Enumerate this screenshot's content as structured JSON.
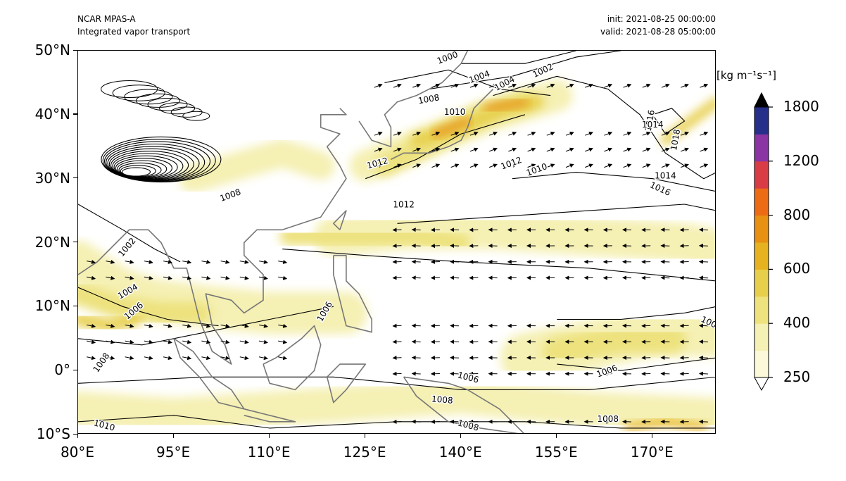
{
  "header": {
    "model": "NCAR MPAS-A",
    "field": "Integrated vapor transport",
    "init": "init: 2021-08-25 00:00:00",
    "valid": "valid: 2021-08-28 05:00:00"
  },
  "axes": {
    "lat_labels": [
      "50°N",
      "40°N",
      "30°N",
      "20°N",
      "10°N",
      "0°",
      "10°S"
    ],
    "lat_values": [
      50,
      40,
      30,
      20,
      10,
      0,
      -10
    ],
    "lon_labels": [
      "80°E",
      "95°E",
      "110°E",
      "125°E",
      "140°E",
      "155°E",
      "170°E"
    ],
    "lon_values": [
      80,
      95,
      110,
      125,
      140,
      155,
      170
    ],
    "lon_range": [
      80,
      180
    ],
    "lat_range": [
      -10,
      50
    ]
  },
  "colorbar": {
    "units": "[kg m⁻¹s⁻¹]",
    "tick_labels": [
      "250",
      "400",
      "600",
      "800",
      "1200",
      "1800"
    ],
    "tick_values": [
      250,
      400,
      600,
      800,
      1200,
      1800
    ],
    "extend": "both",
    "colors": [
      "#fbf9d9",
      "#f5f0b3",
      "#ede27e",
      "#e7cf4b",
      "#e6b21f",
      "#e79012",
      "#ec6b14",
      "#d93c45",
      "#8a35a3",
      "#262f8a"
    ],
    "over_color": "#000000",
    "under_color": "#ffffff"
  },
  "isobar_labels": [
    "1000",
    "1002",
    "1004",
    "1006",
    "1008",
    "1010",
    "1012",
    "1014",
    "1016",
    "1018"
  ],
  "colors": {
    "coastline": "#777777",
    "isobar": "#000000",
    "vector": "#000000"
  }
}
